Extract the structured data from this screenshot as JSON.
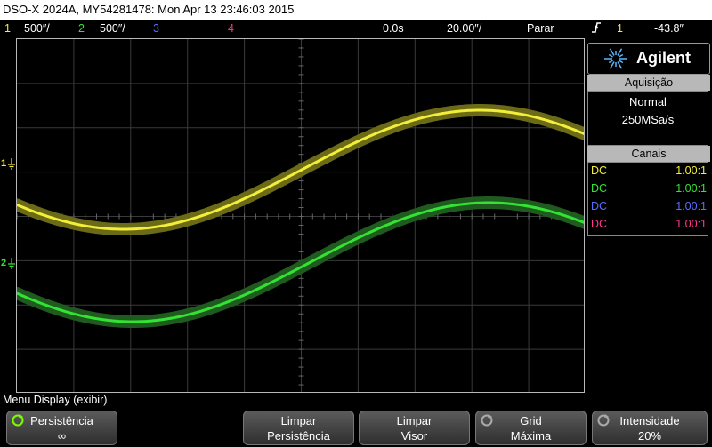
{
  "titlebar": {
    "text": "DSO-X 2024A, MY54281478: Mon Apr 13 23:46:03 2015"
  },
  "status": {
    "ch1_num": "1",
    "ch1_scale": "500″/",
    "ch2_num": "2",
    "ch2_scale": "500″/",
    "ch3_num": "3",
    "ch4_num": "4",
    "time_delay": "0.0s",
    "time_scale": "20.00″/",
    "run_state": "Parar",
    "trig_icon": "trigger-edge-icon",
    "trig_source": "1",
    "trig_level": "-43.8″"
  },
  "markers": {
    "ch1": "1",
    "ch2": "2"
  },
  "side": {
    "brand": "Agilent",
    "acq_title": "Aquisição",
    "acq_mode": "Normal",
    "acq_rate": "250MSa/s",
    "canais_title": "Canais",
    "channels": [
      {
        "coupling": "DC",
        "probe": "1.00:1",
        "color": "#f2ee3a"
      },
      {
        "coupling": "DC",
        "probe": "1.00:1",
        "color": "#33e233"
      },
      {
        "coupling": "DC",
        "probe": "1.00:1",
        "color": "#5a6cff"
      },
      {
        "coupling": "DC",
        "probe": "1.00:1",
        "color": "#ff3a8c"
      }
    ]
  },
  "menu": {
    "title": "Menu Display (exibir)",
    "keys": [
      {
        "line1": "Persistência",
        "line2": "∞"
      },
      {
        "line1": "Limpar",
        "line2": "Persistência"
      },
      {
        "line1": "Limpar",
        "line2": "Visor"
      },
      {
        "line1": "Grid",
        "line2": "Máxima"
      },
      {
        "line1": "Intensidade",
        "line2": "20%"
      }
    ]
  },
  "colors": {
    "ch1": "#f2ee3a",
    "ch2": "#33e233",
    "ch3": "#5a6cff",
    "ch4": "#ff3a8c",
    "trigger": "#ff8800"
  }
}
